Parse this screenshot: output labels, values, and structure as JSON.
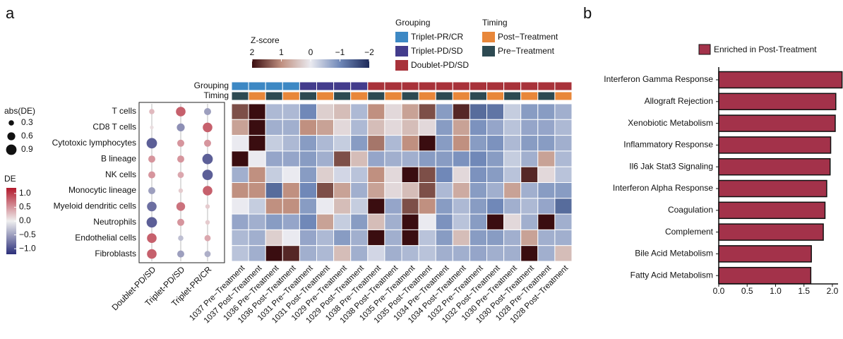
{
  "chart_data": [
    {
      "type": "dot",
      "panel_label": "a",
      "y_categories": [
        "T cells",
        "CD8 T cells",
        "Cytotoxic lymphocytes",
        "B lineage",
        "NK cells",
        "Monocytic lineage",
        "Myeloid dendritic cells",
        "Neutrophils",
        "Endothelial cells",
        "Fibroblasts"
      ],
      "x_categories": [
        "Doublet-PD/SD",
        "Triplet-PD/SD",
        "Triplet-PR/CR"
      ],
      "values": [
        [
          0.3,
          0.8,
          -0.5
        ],
        [
          0.1,
          -0.6,
          0.8
        ],
        [
          -0.9,
          0.5,
          0.5
        ],
        [
          0.5,
          0.5,
          -0.9
        ],
        [
          0.5,
          0.4,
          -0.9
        ],
        [
          -0.5,
          0.2,
          0.8
        ],
        [
          -0.8,
          0.7,
          0.2
        ],
        [
          -0.9,
          0.5,
          0.2
        ],
        [
          0.8,
          -0.3,
          0.4
        ],
        [
          0.8,
          -0.5,
          -0.4
        ]
      ],
      "size_legend": {
        "title": "abs(DE)",
        "values": [
          0.3,
          0.6,
          0.9
        ]
      },
      "color_legend": {
        "title": "DE",
        "lim": [
          1.2,
          -1.2
        ],
        "colors": [
          "#b2182b",
          "#efefef",
          "#2b2f7a"
        ],
        "ticks": [
          {
            "value": 1,
            "label": "1.0"
          },
          0.5,
          {
            "value": 0,
            "label": "0.0"
          },
          {
            "value": -0.5,
            "label": "−0.5"
          },
          {
            "value": -1,
            "label": "−1.0"
          }
        ]
      }
    },
    {
      "type": "heatmap",
      "columns": [
        "1037 Pre−Treatment",
        "1037 Post−Treatment",
        "1036 Pre−Treatment",
        "1036 Post−Treatment",
        "1031 Pre−Treatment",
        "1031 Post−Treatment",
        "1029 Pre−Treatment",
        "1029 Post−Treatment",
        "1038 Pre−Treatment",
        "1038 Post−Treatment",
        "1035 Pre−Treatment",
        "1035 Post−Treatment",
        "1034 Pre−Treatment",
        "1034 Post−Treatment",
        "1032 Pre−Treatment",
        "1032 Post−Treatment",
        "1030 Pre−Treatment",
        "1030 Post−Treatment",
        "1028 Pre−Treatment",
        "1028 Post−Treatment"
      ],
      "values": [
        [
          1.5,
          2,
          -0.5,
          -0.5,
          -1,
          0.3,
          0.5,
          -0.5,
          1,
          0.2,
          0.8,
          1.5,
          -0.8,
          1.8,
          -1.3,
          -1.2,
          -0.3,
          -0.8,
          -0.8,
          -0.6
        ],
        [
          0.8,
          2,
          -0.6,
          -0.6,
          1,
          0.8,
          0.2,
          -0.5,
          0.5,
          0.2,
          0.5,
          0.2,
          -0.8,
          0.8,
          -0.9,
          -0.7,
          -0.4,
          -0.7,
          -0.7,
          -0.5
        ],
        [
          0,
          2,
          -0.3,
          -0.5,
          -0.8,
          -0.5,
          -0.3,
          -0.8,
          1.2,
          -0.5,
          1,
          2,
          -0.8,
          1,
          -0.8,
          -0.9,
          -0.5,
          -0.8,
          -0.8,
          -0.6
        ],
        [
          2,
          0,
          -0.7,
          -0.7,
          -0.8,
          -0.6,
          1.5,
          0.5,
          -0.7,
          -0.6,
          -0.6,
          -0.8,
          -0.8,
          -0.9,
          -1,
          -0.8,
          -0.3,
          -0.6,
          0.8,
          -0.5
        ],
        [
          -0.6,
          1,
          -0.3,
          0,
          -0.8,
          0.3,
          -0.2,
          -0.4,
          1,
          0.2,
          2,
          1.5,
          -1,
          0.2,
          -0.9,
          -0.8,
          -0.4,
          1.8,
          0.2,
          -0.4
        ],
        [
          1,
          1,
          -1.3,
          1,
          -1,
          1.5,
          0.8,
          -0.6,
          0.8,
          0.2,
          0.5,
          1.5,
          -0.5,
          0.7,
          -0.8,
          -0.6,
          0.8,
          -0.6,
          -0.8,
          -0.8
        ],
        [
          0,
          -0.3,
          1,
          1,
          -0.8,
          0,
          0.5,
          -0.3,
          2,
          -0.7,
          1.5,
          1,
          -0.8,
          -0.5,
          -0.8,
          -1,
          -0.6,
          -0.5,
          -0.7,
          -1.3
        ],
        [
          -0.7,
          -0.6,
          -0.8,
          -0.7,
          -1,
          0.8,
          -0.3,
          -0.8,
          0.5,
          -0.6,
          2,
          0,
          -0.9,
          -0.4,
          -0.8,
          2,
          0.2,
          -0.6,
          2,
          -0.6
        ],
        [
          -0.5,
          -0.6,
          0.3,
          0,
          -0.7,
          -0.5,
          -0.8,
          -0.6,
          2,
          -0.6,
          2,
          -0.4,
          -0.8,
          0.5,
          -0.8,
          -0.8,
          -0.6,
          0.8,
          -0.6,
          -0.6
        ],
        [
          -0.4,
          -0.6,
          2,
          1.8,
          -0.6,
          -0.5,
          0.5,
          -0.6,
          -0.2,
          -0.6,
          -0.5,
          -0.4,
          -0.6,
          -0.6,
          -0.7,
          -0.6,
          -0.6,
          2,
          -0.6,
          0.5
        ]
      ],
      "colorbar": {
        "title": "Z-score",
        "lim": [
          2,
          -2
        ],
        "colors": [
          "#3a0d10",
          "#c09080",
          "#eaeaf0",
          "#7088b8",
          "#1e2a5a"
        ],
        "ticks": [
          2,
          1,
          0,
          {
            "value": -1,
            "label": "−1"
          },
          {
            "value": -2,
            "label": "−2"
          }
        ]
      },
      "annotations": [
        {
          "title": "Grouping",
          "levels": [
            {
              "name": "Triplet-PR/CR",
              "color": "#3d88c4"
            },
            {
              "name": "Triplet-PD/SD",
              "color": "#433c8c"
            },
            {
              "name": "Doublet-PD/SD",
              "color": "#a8323a"
            }
          ],
          "values": [
            "Triplet-PR/CR",
            "Triplet-PR/CR",
            "Triplet-PR/CR",
            "Triplet-PR/CR",
            "Triplet-PD/SD",
            "Triplet-PD/SD",
            "Triplet-PD/SD",
            "Triplet-PD/SD",
            "Doublet-PD/SD",
            "Doublet-PD/SD",
            "Doublet-PD/SD",
            "Doublet-PD/SD",
            "Doublet-PD/SD",
            "Doublet-PD/SD",
            "Doublet-PD/SD",
            "Doublet-PD/SD",
            "Doublet-PD/SD",
            "Doublet-PD/SD",
            "Doublet-PD/SD",
            "Doublet-PD/SD"
          ]
        },
        {
          "title": "Timing",
          "levels": [
            {
              "name": "Post−Treatment",
              "color": "#e8873a"
            },
            {
              "name": "Pre−Treatment",
              "color": "#2d4a52"
            }
          ],
          "values": [
            "Pre−Treatment",
            "Post−Treatment",
            "Pre−Treatment",
            "Post−Treatment",
            "Pre−Treatment",
            "Post−Treatment",
            "Pre−Treatment",
            "Post−Treatment",
            "Pre−Treatment",
            "Post−Treatment",
            "Pre−Treatment",
            "Post−Treatment",
            "Pre−Treatment",
            "Post−Treatment",
            "Pre−Treatment",
            "Post−Treatment",
            "Pre−Treatment",
            "Post−Treatment",
            "Pre−Treatment",
            "Post−Treatment"
          ]
        }
      ]
    },
    {
      "type": "bar",
      "panel_label": "b",
      "orientation": "horizontal",
      "categories": [
        "Interferon Gamma Response",
        "Allograft Rejection",
        "Xenobiotic Metabolism",
        "Inflammatory Response",
        "Il6 Jak Stat3 Signaling",
        "Interferon Alpha Response",
        "Coagulation",
        "Complement",
        "Bile Acid Metabolism",
        "Fatty Acid Metabolism"
      ],
      "series": [
        {
          "name": "Enriched in Post-Treatment",
          "color": "#a3324a",
          "values": [
            2.17,
            2.06,
            2.05,
            1.97,
            1.96,
            1.9,
            1.87,
            1.84,
            1.63,
            1.62
          ]
        }
      ],
      "xlim": [
        0,
        2.1
      ],
      "xticks": [
        {
          "value": 0,
          "label": "0.0"
        },
        0.5,
        {
          "value": 1,
          "label": "1.0"
        },
        1.5,
        {
          "value": 2,
          "label": "2.0"
        }
      ]
    }
  ]
}
